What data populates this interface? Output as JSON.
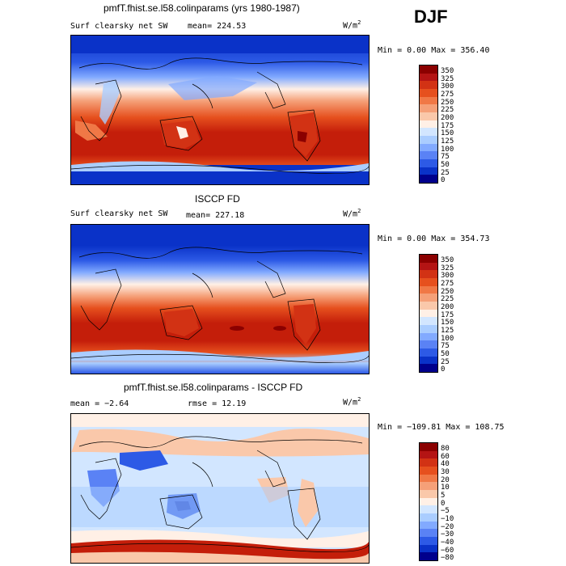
{
  "season": "DJF",
  "units": "W/m",
  "units_sup": "2",
  "panels": [
    {
      "title": "pmfT.fhist.se.l58.colinparams (yrs 1980-1987)",
      "left_label": "Surf clearsky net SW",
      "stat_label": "mean= 224.53",
      "range": "Min =    0.00 Max = 356.40",
      "colorbar_labels": [
        "350",
        "325",
        "300",
        "275",
        "250",
        "225",
        "200",
        "175",
        "150",
        "125",
        "100",
        "75",
        "50",
        "25",
        "0"
      ]
    },
    {
      "title": "ISCCP FD",
      "left_label": "Surf clearsky net SW",
      "stat_label": "mean= 227.18",
      "range": "Min =    0.00 Max = 354.73",
      "colorbar_labels": [
        "350",
        "325",
        "300",
        "275",
        "250",
        "225",
        "200",
        "175",
        "150",
        "125",
        "100",
        "75",
        "50",
        "25",
        "0"
      ]
    },
    {
      "title": "pmfT.fhist.se.l58.colinparams - ISCCP FD",
      "left_label": "mean =  −2.64",
      "stat_label": "rmse =  12.19",
      "range": "Min = −109.81 Max = 108.75",
      "colorbar_labels": [
        "80",
        "60",
        "40",
        "30",
        "20",
        "10",
        "5",
        "0",
        "−5",
        "−10",
        "−20",
        "−30",
        "−40",
        "−60",
        "−80"
      ]
    }
  ],
  "chart_data": [
    {
      "type": "heatmap",
      "title": "pmfT.fhist.se.l58.colinparams (yrs 1980-1987)",
      "variable": "Surf clearsky net SW",
      "units": "W/m2",
      "mean": 224.53,
      "min": 0.0,
      "max": 356.4,
      "levels": [
        0,
        25,
        50,
        75,
        100,
        125,
        150,
        175,
        200,
        225,
        250,
        275,
        300,
        325,
        350
      ]
    },
    {
      "type": "heatmap",
      "title": "ISCCP FD",
      "variable": "Surf clearsky net SW",
      "units": "W/m2",
      "mean": 227.18,
      "min": 0.0,
      "max": 354.73,
      "levels": [
        0,
        25,
        50,
        75,
        100,
        125,
        150,
        175,
        200,
        225,
        250,
        275,
        300,
        325,
        350
      ]
    },
    {
      "type": "heatmap",
      "title": "pmfT.fhist.se.l58.colinparams - ISCCP FD",
      "units": "W/m2",
      "mean": -2.64,
      "rmse": 12.19,
      "min": -109.81,
      "max": 108.75,
      "levels": [
        -80,
        -60,
        -40,
        -30,
        -20,
        -10,
        -5,
        0,
        5,
        10,
        20,
        30,
        40,
        60,
        80
      ]
    }
  ],
  "colors": {
    "abs_scale": [
      "#8b0000",
      "#b41414",
      "#d23214",
      "#e6501e",
      "#f07846",
      "#f5a078",
      "#fac8aa",
      "#fff0e6",
      "#d2e6ff",
      "#aacdff",
      "#82aaff",
      "#5a82f5",
      "#2d5ae6",
      "#0a32c8",
      "#00008c"
    ],
    "diff_scale": [
      "#8b0000",
      "#b41414",
      "#d23214",
      "#e6501e",
      "#f07846",
      "#f5a078",
      "#fac8aa",
      "#fff0e6",
      "#d2e6ff",
      "#aacdff",
      "#82aaff",
      "#5a82f5",
      "#2d5ae6",
      "#0a32c8",
      "#00008c"
    ]
  }
}
